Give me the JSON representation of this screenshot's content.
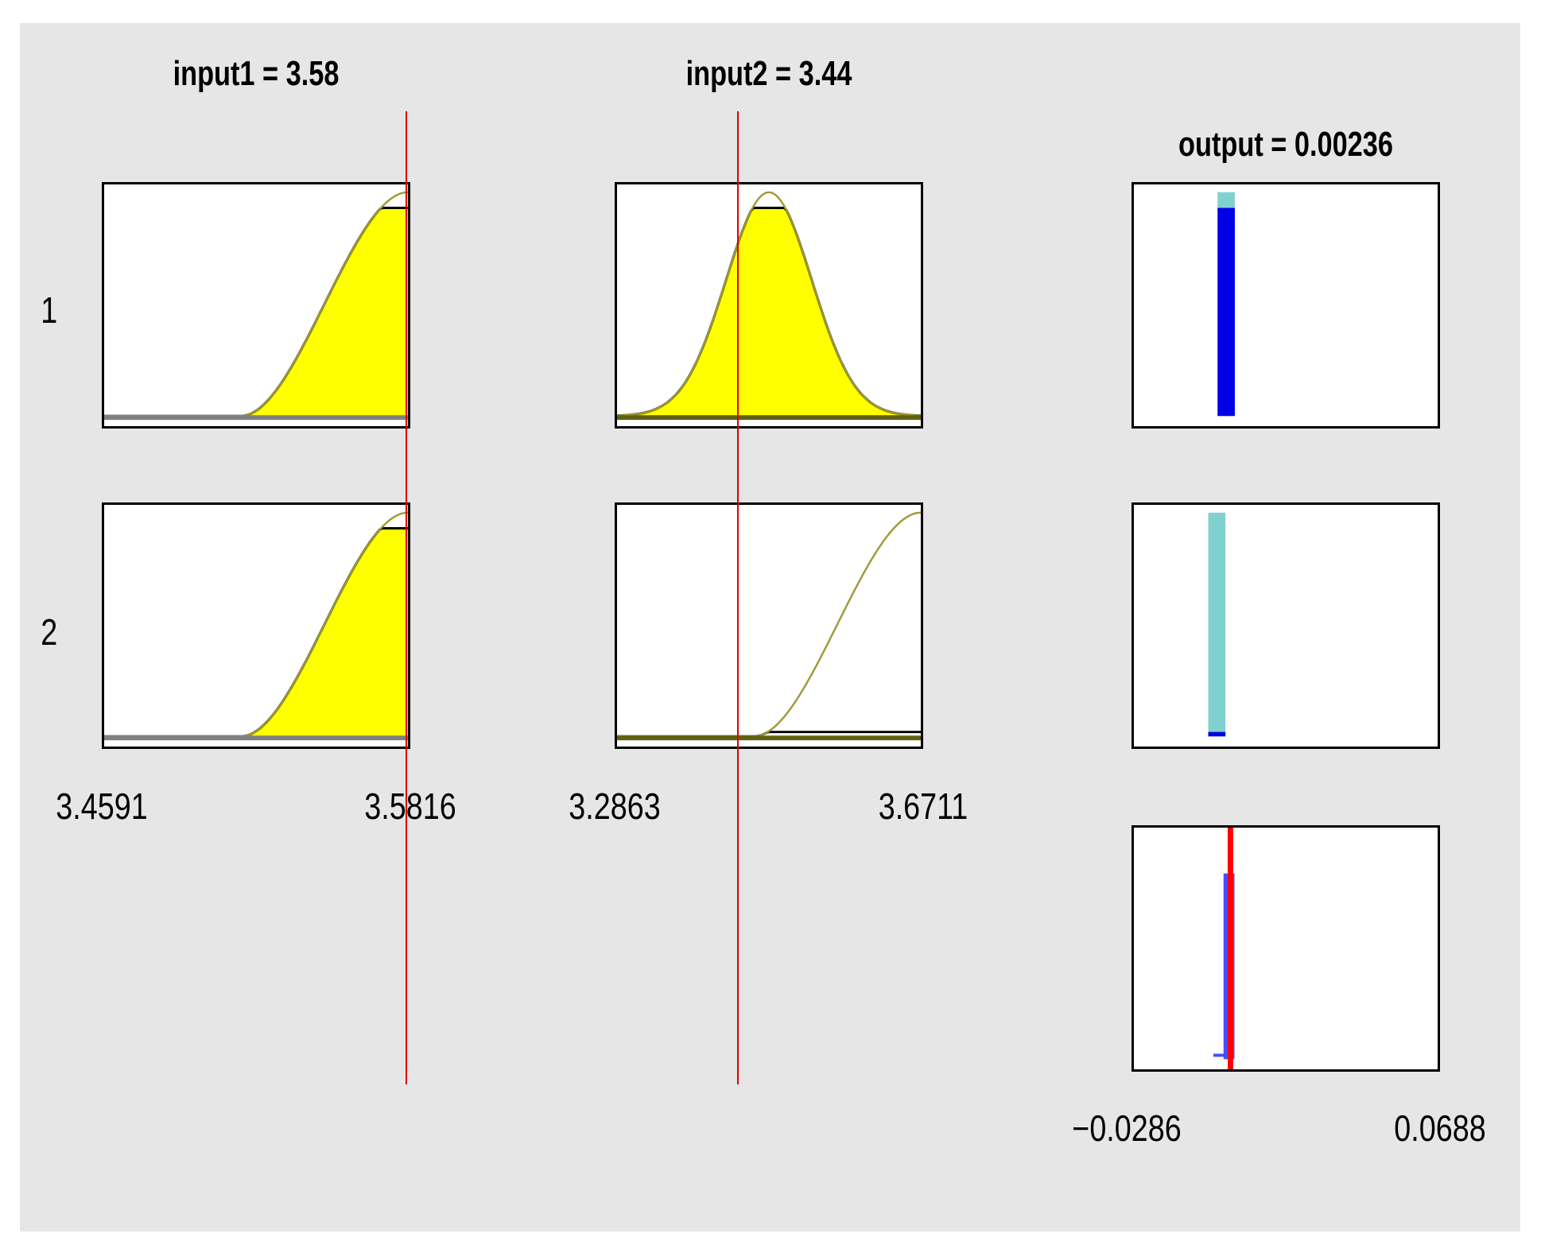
{
  "titles": {
    "input1": "input1 = 3.58",
    "input2": "input2 = 3.44",
    "output": "output = 0.00236"
  },
  "rows": [
    "1",
    "2"
  ],
  "axes": {
    "input1": {
      "min_label": "3.4591",
      "max_label": "3.5816",
      "min": 3.4591,
      "max": 3.5816,
      "value": 3.58
    },
    "input2": {
      "min_label": "3.2863",
      "max_label": "3.6711",
      "min": 3.2863,
      "max": 3.6711,
      "value": 3.44
    },
    "output": {
      "min_label": "−0.0286",
      "max_label": "0.0688",
      "min": -0.0286,
      "max": 0.0688,
      "value": 0.00236
    }
  },
  "rules": [
    {
      "input1_firing": 0.93,
      "input2_firing": 0.93,
      "output_value": 0.001,
      "weight": 0.93
    },
    {
      "input1_firing": 0.93,
      "input2_firing": 0.02,
      "output_value": -0.002,
      "weight": 0.02
    }
  ],
  "aggregate": {
    "output_value": 0.0019,
    "level": 0.83
  },
  "colors": {
    "fill": "#ffff00",
    "curve": "#000000",
    "unfired": "#a09a3a",
    "cursor": "#e00000",
    "output_bar": "#0000e6",
    "output_bar_bg": "#80d0d0",
    "aggregate_bar": "#4a4aff",
    "output_cursor": "#ff0000",
    "background": "#e6e6e6"
  }
}
